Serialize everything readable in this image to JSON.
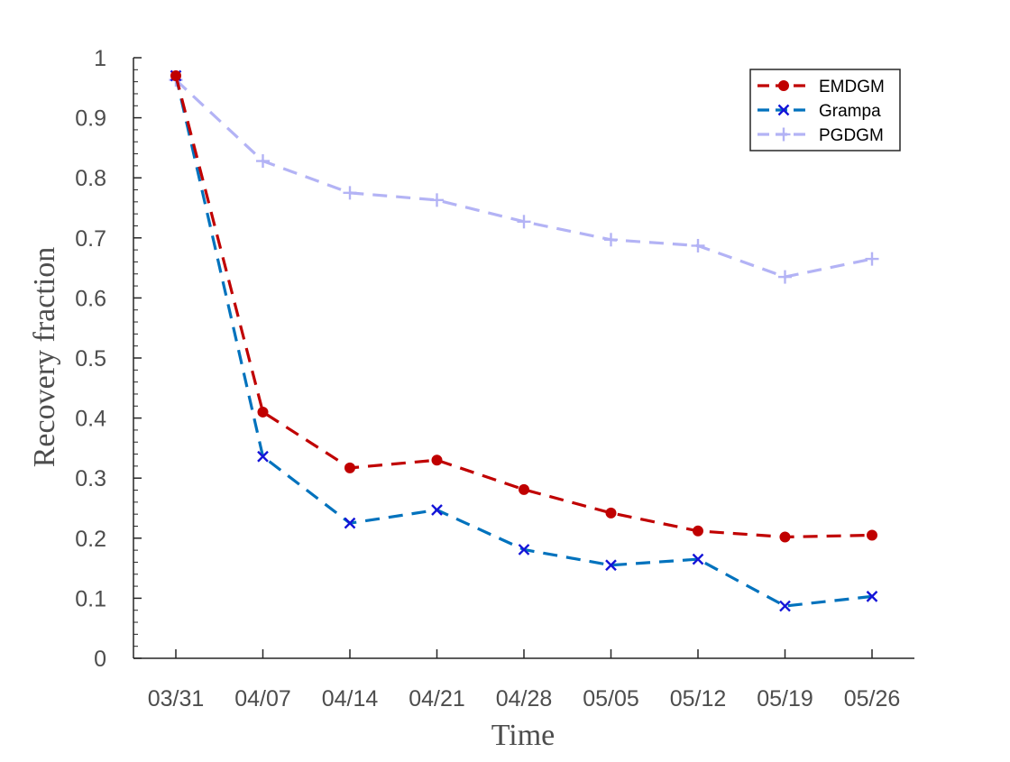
{
  "chart_data": {
    "type": "line",
    "title": "",
    "xlabel": "Time",
    "ylabel": "Recovery fraction",
    "categories": [
      "03/31",
      "04/07",
      "04/14",
      "04/21",
      "04/28",
      "05/05",
      "05/12",
      "05/19",
      "05/26"
    ],
    "y_ticks": [
      "0",
      "0.1",
      "0.2",
      "0.3",
      "0.4",
      "0.5",
      "0.6",
      "0.7",
      "0.8",
      "0.9",
      "1"
    ],
    "ylim": [
      0,
      1
    ],
    "grid": false,
    "legend_position": "top-right",
    "series": [
      {
        "name": "EMDGM",
        "color": "#c00000",
        "marker": "filled-circle",
        "line_style": "dashed",
        "values": [
          0.97,
          0.41,
          0.317,
          0.33,
          0.281,
          0.242,
          0.212,
          0.202,
          0.205
        ]
      },
      {
        "name": "Grampa",
        "color": "#0072bd",
        "marker_color": "#1414d8",
        "marker": "x",
        "line_style": "dashed",
        "values": [
          0.97,
          0.336,
          0.225,
          0.247,
          0.181,
          0.155,
          0.165,
          0.087,
          0.103
        ]
      },
      {
        "name": "PGDGM",
        "color": "#b3b3f5",
        "marker": "plus",
        "line_style": "dashed",
        "values": [
          0.963,
          0.828,
          0.775,
          0.763,
          0.727,
          0.697,
          0.687,
          0.635,
          0.665
        ]
      }
    ]
  }
}
